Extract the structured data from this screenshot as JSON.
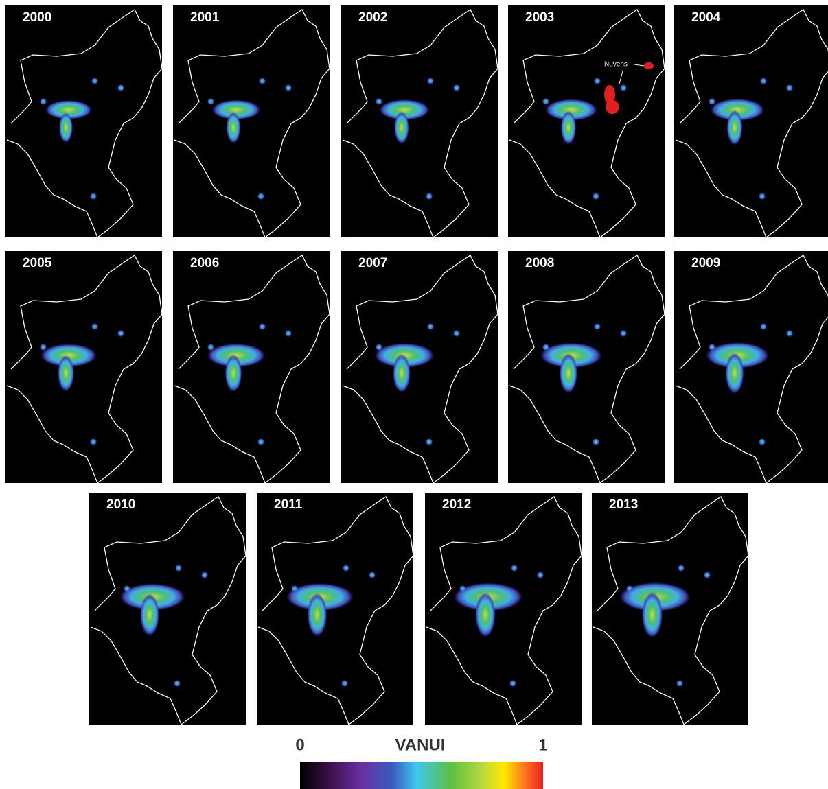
{
  "panels": [
    {
      "year": "2000"
    },
    {
      "year": "2001"
    },
    {
      "year": "2002"
    },
    {
      "year": "2003",
      "annotation": "Nuvens"
    },
    {
      "year": "2004"
    },
    {
      "year": "2005"
    },
    {
      "year": "2006"
    },
    {
      "year": "2007"
    },
    {
      "year": "2008"
    },
    {
      "year": "2009"
    },
    {
      "year": "2010"
    },
    {
      "year": "2011"
    },
    {
      "year": "2012"
    },
    {
      "year": "2013"
    }
  ],
  "colorbar": {
    "title": "VANUI",
    "min": 0,
    "max": 1
  }
}
